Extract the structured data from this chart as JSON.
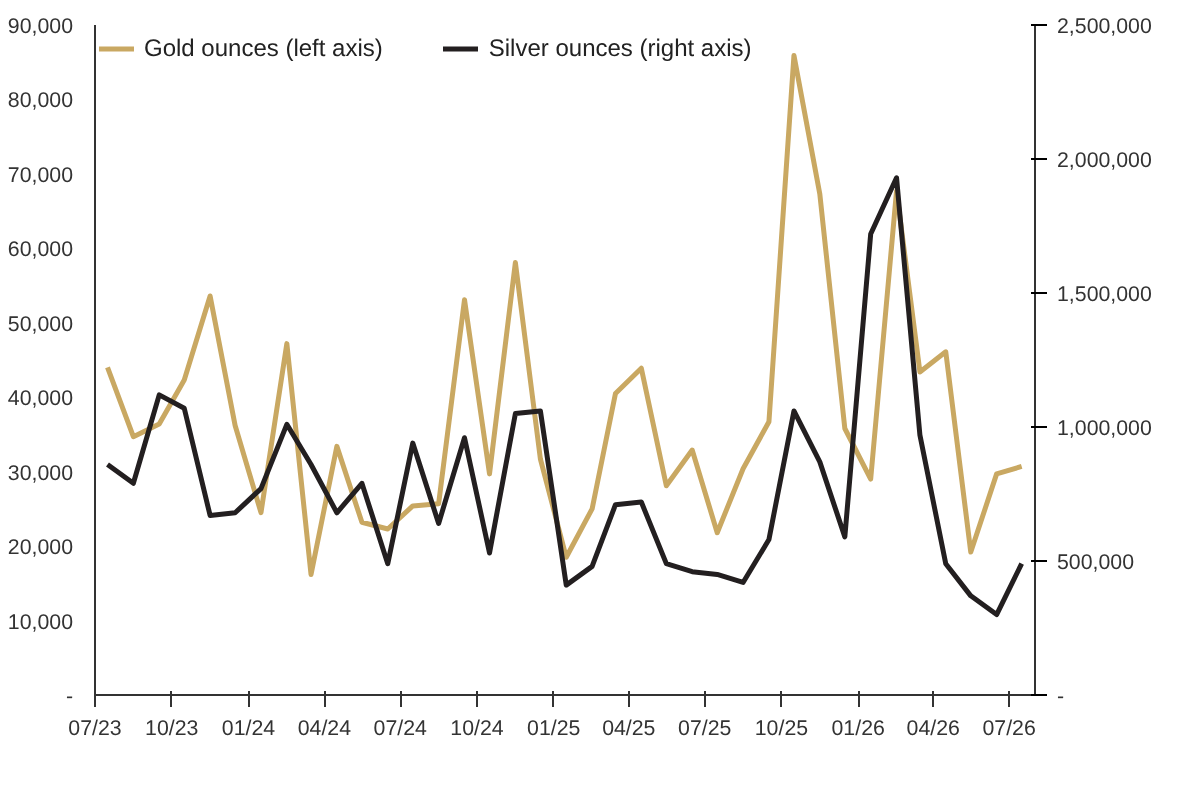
{
  "chart_data": {
    "type": "line",
    "x": [
      "2023-07-16",
      "2023-08-16",
      "2023-09-16",
      "2023-10-16",
      "2023-11-16",
      "2023-12-16",
      "2024-01-16",
      "2024-02-16",
      "2024-03-16",
      "2024-04-16",
      "2024-05-16",
      "2024-06-16",
      "2024-07-16",
      "2024-08-16",
      "2024-09-16",
      "2024-10-16",
      "2024-11-16",
      "2024-12-16",
      "2025-01-16",
      "2025-02-16",
      "2025-03-16",
      "2025-04-16",
      "2025-05-16",
      "2025-06-16",
      "2025-07-16",
      "2025-08-16",
      "2025-09-16",
      "2025-10-16",
      "2025-11-16",
      "2025-12-16",
      "2026-01-16",
      "2026-02-16",
      "2026-03-16",
      "2026-04-16",
      "2026-05-16",
      "2026-06-16",
      "2026-07-16"
    ],
    "xlim": [
      "2023-07",
      "2026-08"
    ],
    "xticks": [
      {
        "value": "2023-07",
        "label": "07/23"
      },
      {
        "value": "2023-10",
        "label": "10/23"
      },
      {
        "value": "2024-01",
        "label": "01/24"
      },
      {
        "value": "2024-04",
        "label": "04/24"
      },
      {
        "value": "2024-07",
        "label": "07/24"
      },
      {
        "value": "2024-10",
        "label": "10/24"
      },
      {
        "value": "2025-01",
        "label": "01/25"
      },
      {
        "value": "2025-04",
        "label": "04/25"
      },
      {
        "value": "2025-07",
        "label": "07/25"
      },
      {
        "value": "2025-10",
        "label": "10/25"
      },
      {
        "value": "2026-01",
        "label": "01/26"
      },
      {
        "value": "2026-04",
        "label": "04/26"
      },
      {
        "value": "2026-07",
        "label": "07/26"
      }
    ],
    "ylim": [
      0,
      90000
    ],
    "yticks": [
      {
        "value": 0,
        "label": "-"
      },
      {
        "value": 10000,
        "label": "10,000"
      },
      {
        "value": 20000,
        "label": "20,000"
      },
      {
        "value": 30000,
        "label": "30,000"
      },
      {
        "value": 40000,
        "label": "40,000"
      },
      {
        "value": 50000,
        "label": "50,000"
      },
      {
        "value": 60000,
        "label": "60,000"
      },
      {
        "value": 70000,
        "label": "70,000"
      },
      {
        "value": 80000,
        "label": "80,000"
      },
      {
        "value": 90000,
        "label": "90,000"
      }
    ],
    "y2lim": [
      0,
      2500000
    ],
    "y2ticks": [
      {
        "value": 0,
        "label": "-"
      },
      {
        "value": 500000,
        "label": "500,000"
      },
      {
        "value": 1000000,
        "label": "1,000,000"
      },
      {
        "value": 1500000,
        "label": "1,500,000"
      },
      {
        "value": 2000000,
        "label": "2,000,000"
      },
      {
        "value": 2500000,
        "label": "2,500,000"
      }
    ],
    "series": [
      {
        "name": "Gold ounces (left axis)",
        "color": "#c9a862",
        "values": [
          44000,
          34700,
          36400,
          42300,
          53600,
          36200,
          24500,
          47200,
          16200,
          33400,
          23200,
          22300,
          25400,
          25700,
          53100,
          29700,
          58100,
          31700,
          18500,
          25000,
          40500,
          43900,
          28100,
          32900,
          21800,
          30400,
          36700,
          85900,
          67300,
          35800,
          29000,
          67700,
          43400,
          46100,
          19200,
          29700,
          30700
        ]
      },
      {
        "name": "Silver ounces (right axis)",
        "color": "#231f20",
        "axis": "y2",
        "values": [
          860000,
          790000,
          1120000,
          1070000,
          670000,
          680000,
          770000,
          1010000,
          860000,
          680000,
          790000,
          490000,
          940000,
          640000,
          960000,
          530000,
          1050000,
          1060000,
          410000,
          480000,
          710000,
          720000,
          490000,
          460000,
          450000,
          420000,
          580000,
          1060000,
          870000,
          590000,
          1720000,
          1930000,
          970000,
          490000,
          370000,
          300000,
          490000
        ]
      }
    ],
    "legend": "top left",
    "grid": false,
    "marker": "none",
    "line_style": "solid"
  }
}
